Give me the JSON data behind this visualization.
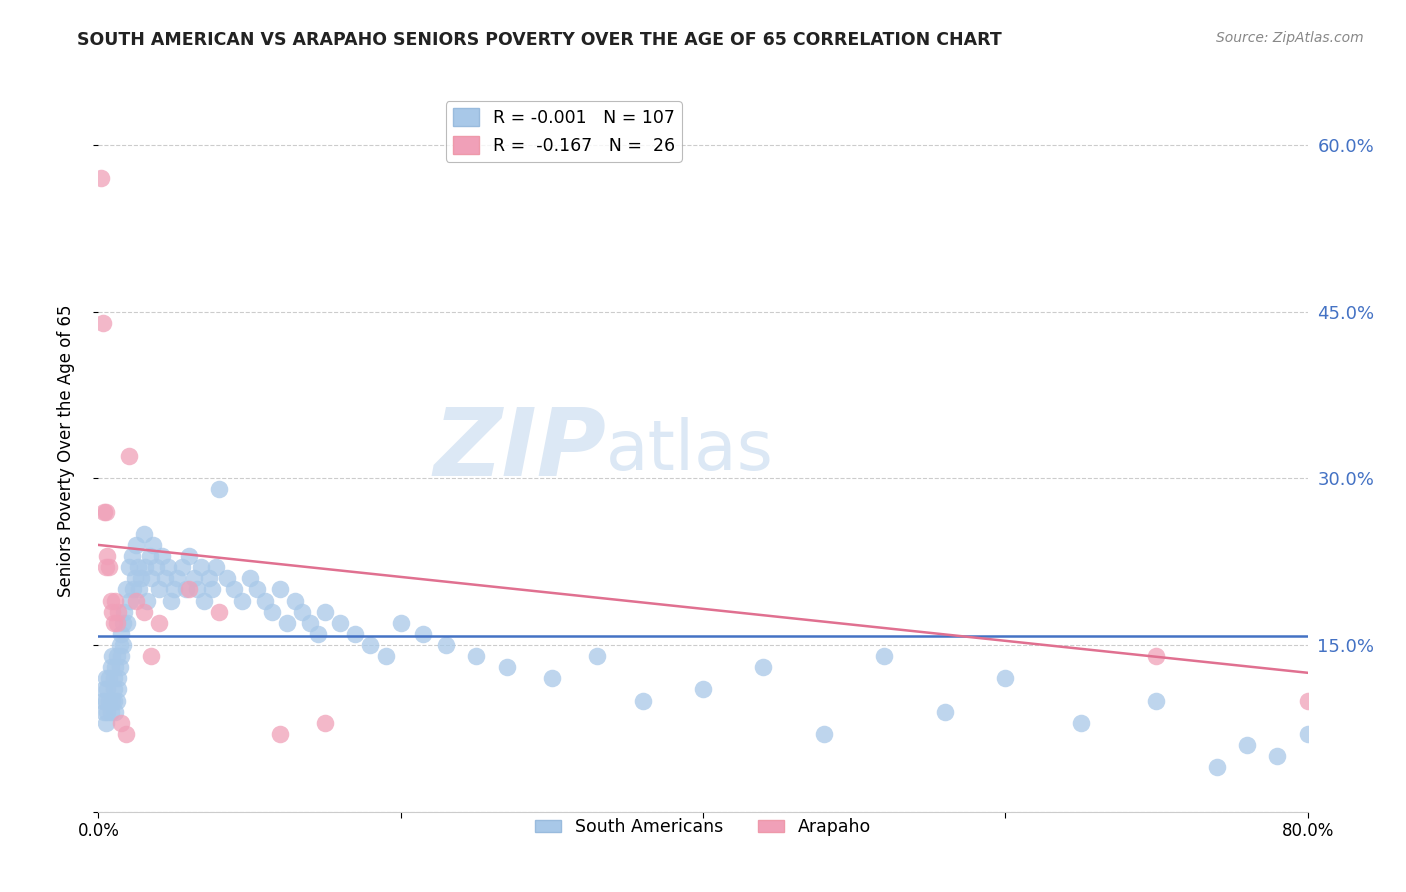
{
  "title": "SOUTH AMERICAN VS ARAPAHO SENIORS POVERTY OVER THE AGE OF 65 CORRELATION CHART",
  "source": "Source: ZipAtlas.com",
  "ylabel": "Seniors Poverty Over the Age of 65",
  "xlim": [
    0.0,
    0.8
  ],
  "ylim": [
    0.0,
    0.65
  ],
  "yticks": [
    0.0,
    0.15,
    0.3,
    0.45,
    0.6
  ],
  "xticks": [
    0.0,
    0.2,
    0.4,
    0.6,
    0.8
  ],
  "xtick_labels": [
    "0.0%",
    "",
    "",
    "",
    "80.0%"
  ],
  "right_ytick_labels": [
    "",
    "15.0%",
    "30.0%",
    "45.0%",
    "60.0%"
  ],
  "blue_line_color": "#4472c4",
  "pink_line_color": "#e07090",
  "scatter_blue_color": "#a8c8e8",
  "scatter_pink_color": "#f0a0b8",
  "watermark_zip": "ZIP",
  "watermark_atlas": "atlas",
  "watermark_color": "#dce8f5",
  "background_color": "#ffffff",
  "grid_color": "#cccccc",
  "title_color": "#222222",
  "blue_trend_y0": 0.158,
  "blue_trend_y1": 0.158,
  "pink_trend_y0": 0.24,
  "pink_trend_y1": 0.125,
  "sa_x": [
    0.003,
    0.004,
    0.004,
    0.005,
    0.005,
    0.005,
    0.006,
    0.006,
    0.007,
    0.007,
    0.008,
    0.008,
    0.009,
    0.009,
    0.01,
    0.01,
    0.01,
    0.011,
    0.011,
    0.012,
    0.012,
    0.013,
    0.013,
    0.014,
    0.014,
    0.015,
    0.015,
    0.016,
    0.016,
    0.017,
    0.018,
    0.019,
    0.02,
    0.021,
    0.022,
    0.023,
    0.024,
    0.025,
    0.026,
    0.027,
    0.028,
    0.03,
    0.031,
    0.032,
    0.034,
    0.035,
    0.036,
    0.038,
    0.04,
    0.042,
    0.044,
    0.046,
    0.048,
    0.05,
    0.052,
    0.055,
    0.058,
    0.06,
    0.063,
    0.065,
    0.068,
    0.07,
    0.073,
    0.075,
    0.078,
    0.08,
    0.085,
    0.09,
    0.095,
    0.1,
    0.105,
    0.11,
    0.115,
    0.12,
    0.125,
    0.13,
    0.135,
    0.14,
    0.145,
    0.15,
    0.16,
    0.17,
    0.18,
    0.19,
    0.2,
    0.215,
    0.23,
    0.25,
    0.27,
    0.3,
    0.33,
    0.36,
    0.4,
    0.44,
    0.48,
    0.52,
    0.56,
    0.6,
    0.65,
    0.7,
    0.74,
    0.76,
    0.78,
    0.8,
    0.81,
    0.82,
    0.84
  ],
  "sa_y": [
    0.1,
    0.09,
    0.11,
    0.08,
    0.12,
    0.1,
    0.11,
    0.09,
    0.1,
    0.12,
    0.13,
    0.09,
    0.1,
    0.14,
    0.11,
    0.1,
    0.12,
    0.09,
    0.13,
    0.1,
    0.14,
    0.12,
    0.11,
    0.15,
    0.13,
    0.16,
    0.14,
    0.17,
    0.15,
    0.18,
    0.2,
    0.17,
    0.22,
    0.19,
    0.23,
    0.2,
    0.21,
    0.24,
    0.22,
    0.2,
    0.21,
    0.25,
    0.22,
    0.19,
    0.23,
    0.21,
    0.24,
    0.22,
    0.2,
    0.23,
    0.21,
    0.22,
    0.19,
    0.2,
    0.21,
    0.22,
    0.2,
    0.23,
    0.21,
    0.2,
    0.22,
    0.19,
    0.21,
    0.2,
    0.22,
    0.29,
    0.21,
    0.2,
    0.19,
    0.21,
    0.2,
    0.19,
    0.18,
    0.2,
    0.17,
    0.19,
    0.18,
    0.17,
    0.16,
    0.18,
    0.17,
    0.16,
    0.15,
    0.14,
    0.17,
    0.16,
    0.15,
    0.14,
    0.13,
    0.12,
    0.14,
    0.1,
    0.11,
    0.13,
    0.07,
    0.14,
    0.09,
    0.12,
    0.08,
    0.1,
    0.04,
    0.06,
    0.05,
    0.07,
    0.04,
    0.03,
    0.05
  ],
  "ar_x": [
    0.002,
    0.003,
    0.004,
    0.005,
    0.005,
    0.006,
    0.007,
    0.008,
    0.009,
    0.01,
    0.011,
    0.012,
    0.013,
    0.015,
    0.018,
    0.02,
    0.025,
    0.03,
    0.035,
    0.04,
    0.06,
    0.08,
    0.12,
    0.15,
    0.7,
    0.8
  ],
  "ar_y": [
    0.57,
    0.44,
    0.27,
    0.27,
    0.22,
    0.23,
    0.22,
    0.19,
    0.18,
    0.17,
    0.19,
    0.17,
    0.18,
    0.08,
    0.07,
    0.32,
    0.19,
    0.18,
    0.14,
    0.17,
    0.2,
    0.18,
    0.07,
    0.08,
    0.14,
    0.1
  ]
}
